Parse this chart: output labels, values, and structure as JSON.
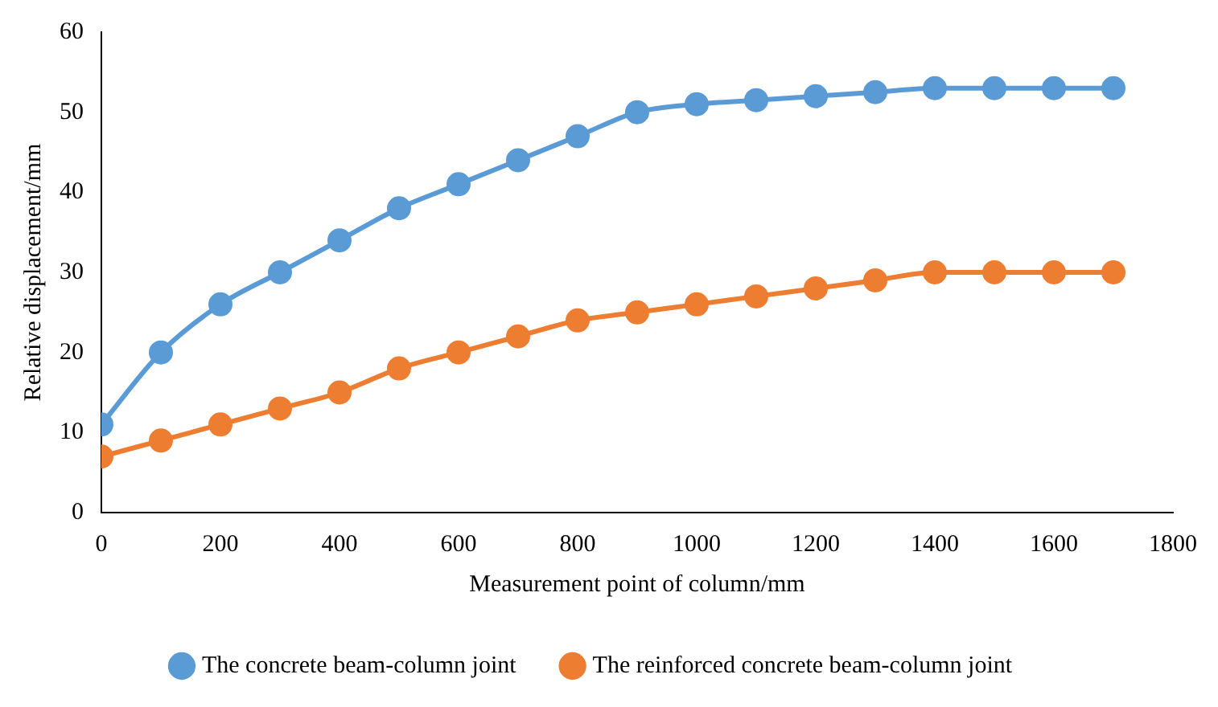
{
  "chart_data": {
    "type": "line",
    "xlabel": "Measurement point of column/mm",
    "ylabel": "Relative displacement/mm",
    "x": [
      0,
      100,
      200,
      300,
      400,
      500,
      600,
      700,
      800,
      900,
      1000,
      1100,
      1200,
      1300,
      1400,
      1500,
      1600,
      1700
    ],
    "series": [
      {
        "name": "The concrete beam-column joint",
        "color": "#5b9bd5",
        "values": [
          11,
          20,
          26,
          30,
          34,
          38,
          41,
          44,
          47,
          50,
          51,
          51.5,
          52,
          52.5,
          53,
          53,
          53,
          53
        ]
      },
      {
        "name": "The reinforced concrete beam-column joint",
        "color": "#ed7d31",
        "values": [
          7,
          9,
          11,
          13,
          15,
          18,
          20,
          22,
          24,
          25,
          26,
          27,
          28,
          29,
          30,
          30,
          30,
          30
        ]
      }
    ],
    "xlim": [
      0,
      1800
    ],
    "xticks": [
      0,
      200,
      400,
      600,
      800,
      1000,
      1200,
      1400,
      1600,
      1800
    ],
    "ylim": [
      0,
      60
    ],
    "yticks": [
      0,
      10,
      20,
      30,
      40,
      50,
      60
    ],
    "grid": false,
    "legend": "bottom",
    "marker": "circle",
    "line_style": "solid"
  }
}
